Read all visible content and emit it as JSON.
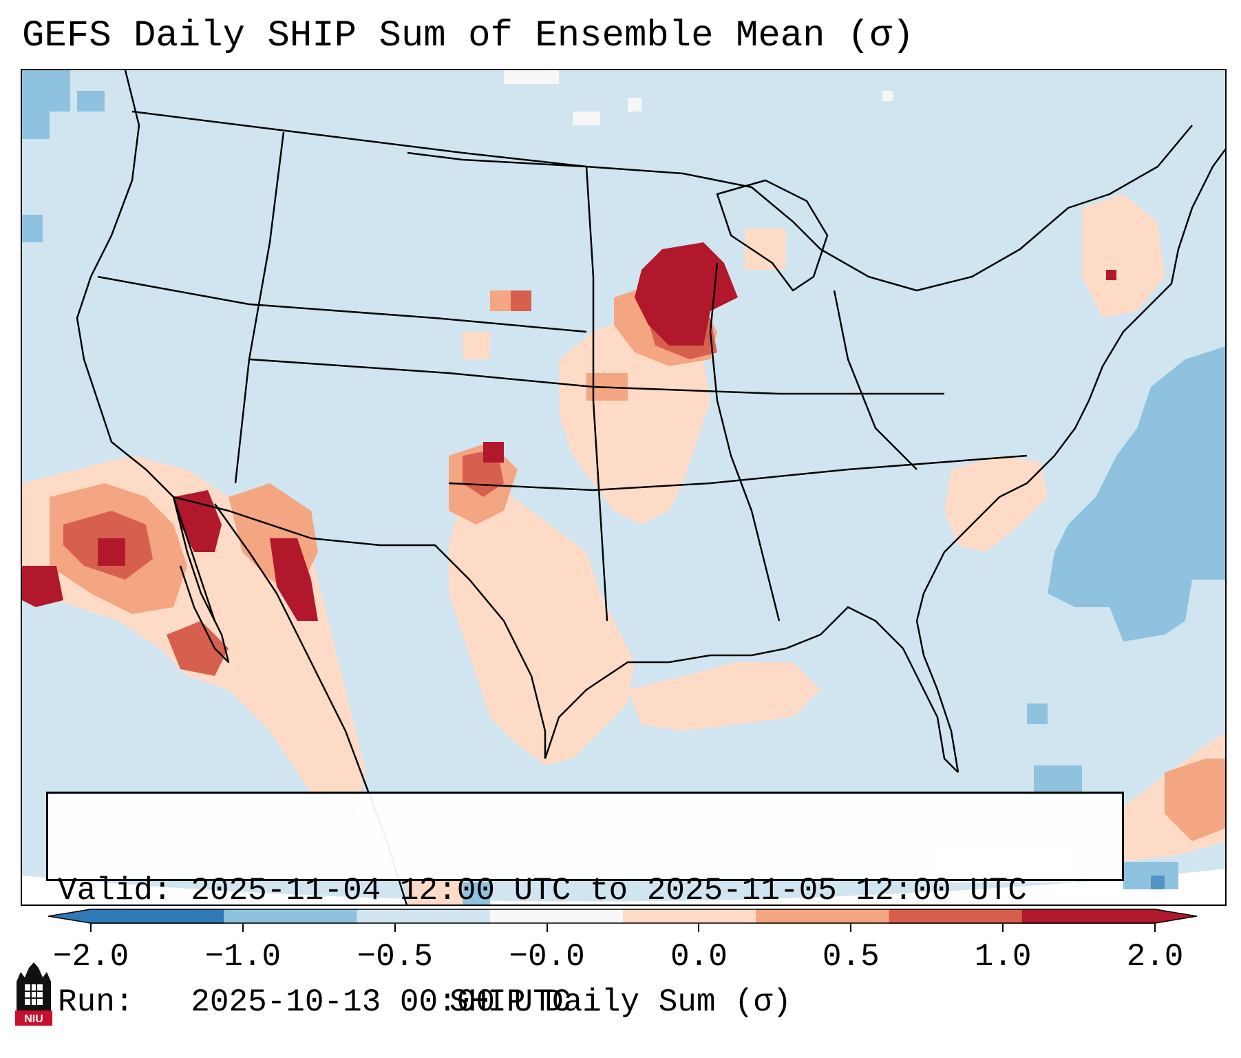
{
  "title": "GEFS Daily SHIP Sum of Ensemble Mean (σ)",
  "info": {
    "valid_label": "Valid:",
    "valid_value": "2025-11-04 12:00 UTC to 2025-11-05 12:00 UTC",
    "run_label": "Run:",
    "run_value": "2025-10-13 00:00 UTC"
  },
  "colorbar": {
    "title": "SHIP Daily Sum (σ)",
    "tick_labels": [
      "−2.0",
      "−1.0",
      "−0.5",
      "−0.0",
      "0.0",
      "0.5",
      "1.0",
      "2.0"
    ],
    "colors": [
      "#2f79b5",
      "#8fc2de",
      "#d1e5f0",
      "#f7f7f7",
      "#fddbc7",
      "#f4a582",
      "#d6604d",
      "#b2182b"
    ],
    "extend": "both"
  },
  "map": {
    "region": "Contiguous United States",
    "projection": "Lambert conformal",
    "background_value_color": "#d1e5f0",
    "ocean_low_color": "#8fc2de",
    "positive_anomaly_colors": [
      "#fddbc7",
      "#f4a582",
      "#d6604d",
      "#b2182b"
    ],
    "strongest_signal": "Iowa / southern Minnesota"
  },
  "logo": {
    "text": "NIU",
    "brand_color": "#c8102e"
  }
}
